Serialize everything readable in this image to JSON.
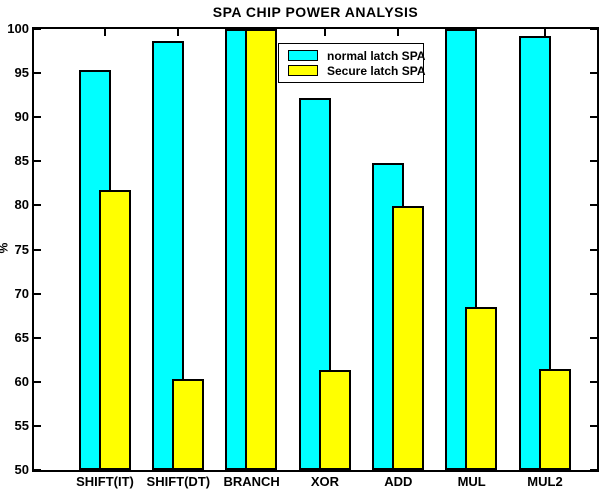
{
  "chart_data": {
    "type": "bar",
    "title": "SPA CHIP POWER ANALYSIS",
    "xlabel": "",
    "ylabel": "%",
    "categories": [
      "SHIFT(IT)",
      "SHIFT(DT)",
      "BRANCH",
      "XOR",
      "ADD",
      "MUL",
      "MUL2"
    ],
    "series": [
      {
        "name": "normal latch SPA",
        "color": "#00FFFF",
        "values": [
          95.3,
          98.6,
          100,
          92.2,
          84.8,
          100,
          99.2
        ]
      },
      {
        "name": "Secure latch SPA",
        "color": "#FFFF00",
        "values": [
          81.8,
          60.3,
          100,
          61.3,
          79.9,
          68.5,
          61.5
        ]
      }
    ],
    "ylim": [
      50,
      100
    ],
    "yticks": [
      50,
      55,
      60,
      65,
      70,
      75,
      80,
      85,
      90,
      95,
      100
    ],
    "grid": false,
    "legend_position": "upper center",
    "bar_style": "overlapped",
    "outline_color": "#000000",
    "background_color": "#FFFFFF"
  }
}
